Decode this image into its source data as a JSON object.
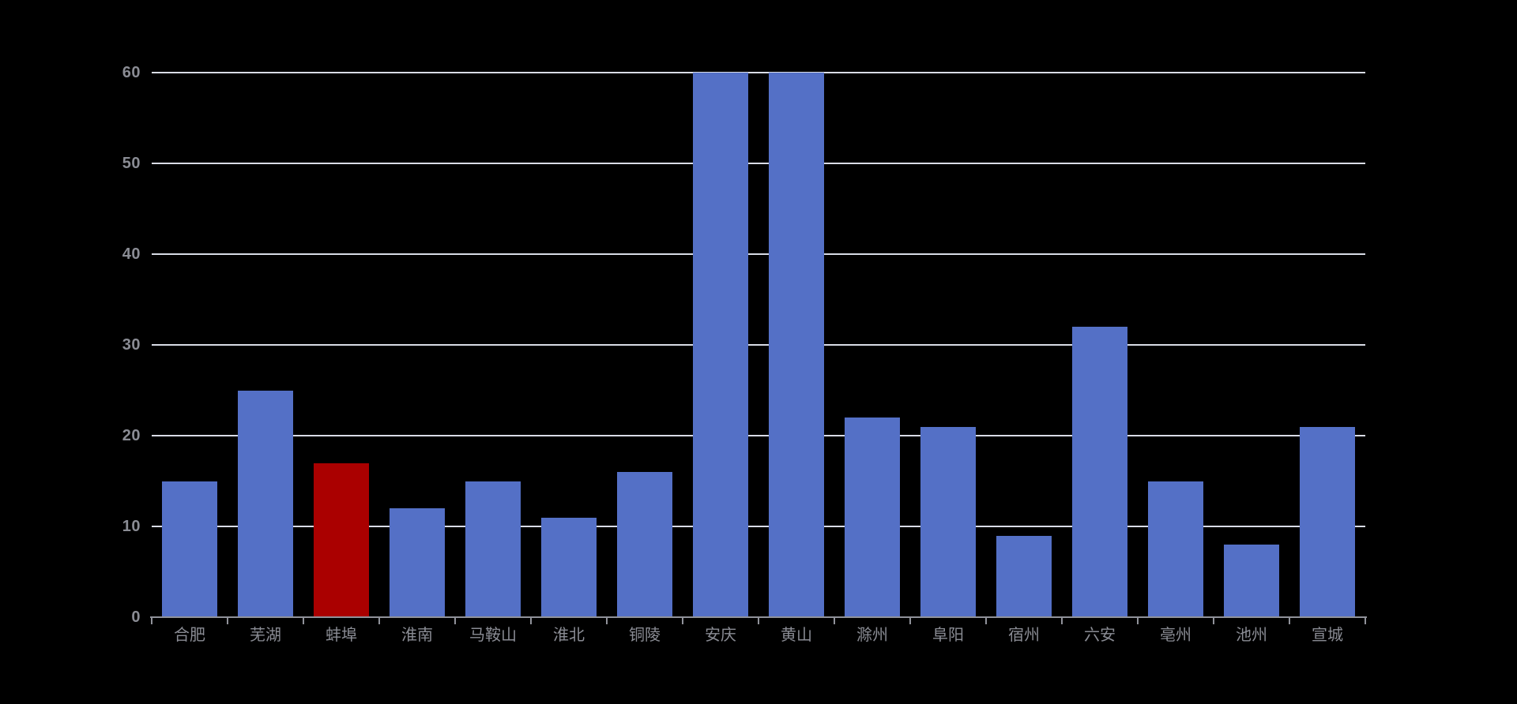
{
  "chart_data": {
    "type": "bar",
    "title": "",
    "xlabel": "",
    "ylabel": "",
    "categories": [
      "合肥",
      "芜湖",
      "蚌埠",
      "淮南",
      "马鞍山",
      "淮北",
      "铜陵",
      "安庆",
      "黄山",
      "滁州",
      "阜阳",
      "宿州",
      "六安",
      "亳州",
      "池州",
      "宣城"
    ],
    "values": [
      15,
      25,
      17,
      12,
      15,
      11,
      16,
      60,
      60,
      22,
      21,
      9,
      32,
      15,
      8,
      21
    ],
    "highlight_index": 2,
    "highlighted_category": "蚌埠",
    "ylim": [
      0,
      60
    ],
    "y_ticks": [
      0,
      10,
      20,
      30,
      40,
      50,
      60
    ],
    "grid": true,
    "legend": false,
    "colors": {
      "background": "#000000",
      "bar_default": "#5470C6",
      "bar_highlight": "#AA0000",
      "gridline": "#D9DCE6",
      "axis_line": "#90929A",
      "tick_label": "#8A8C94"
    }
  }
}
